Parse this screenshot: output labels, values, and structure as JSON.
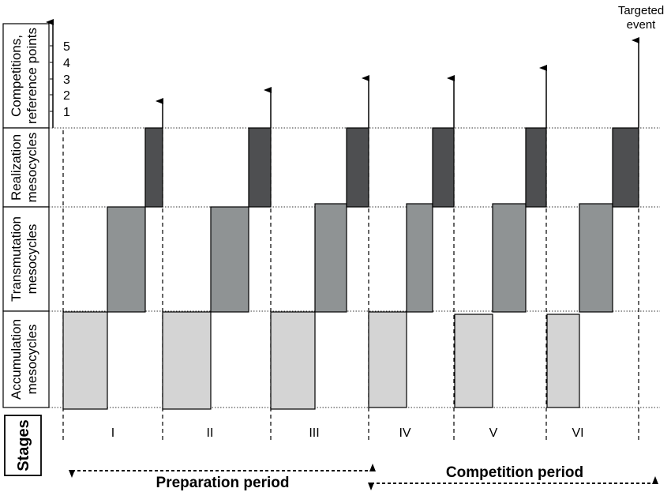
{
  "row_labels": {
    "competitions": [
      "Competitions,",
      "reference points"
    ],
    "realization": [
      "Realization",
      "mesocycles"
    ],
    "transmutation": [
      "Transmutation",
      "mesocycles"
    ],
    "accumulation": [
      "Accumulation",
      "mesocycles"
    ],
    "stages": "Stages"
  },
  "y_ticks": [
    "1",
    "2",
    "3",
    "4",
    "5"
  ],
  "stages": [
    "I",
    "II",
    "III",
    "IV",
    "V",
    "VI"
  ],
  "targeted_event": [
    "Targeted",
    "event"
  ],
  "periods": {
    "preparation": "Preparation period",
    "competition": "Competition period"
  },
  "colors": {
    "accumulation": "#d4d4d4",
    "transmutation": "#8f9394",
    "realization": "#4e4f51"
  }
}
